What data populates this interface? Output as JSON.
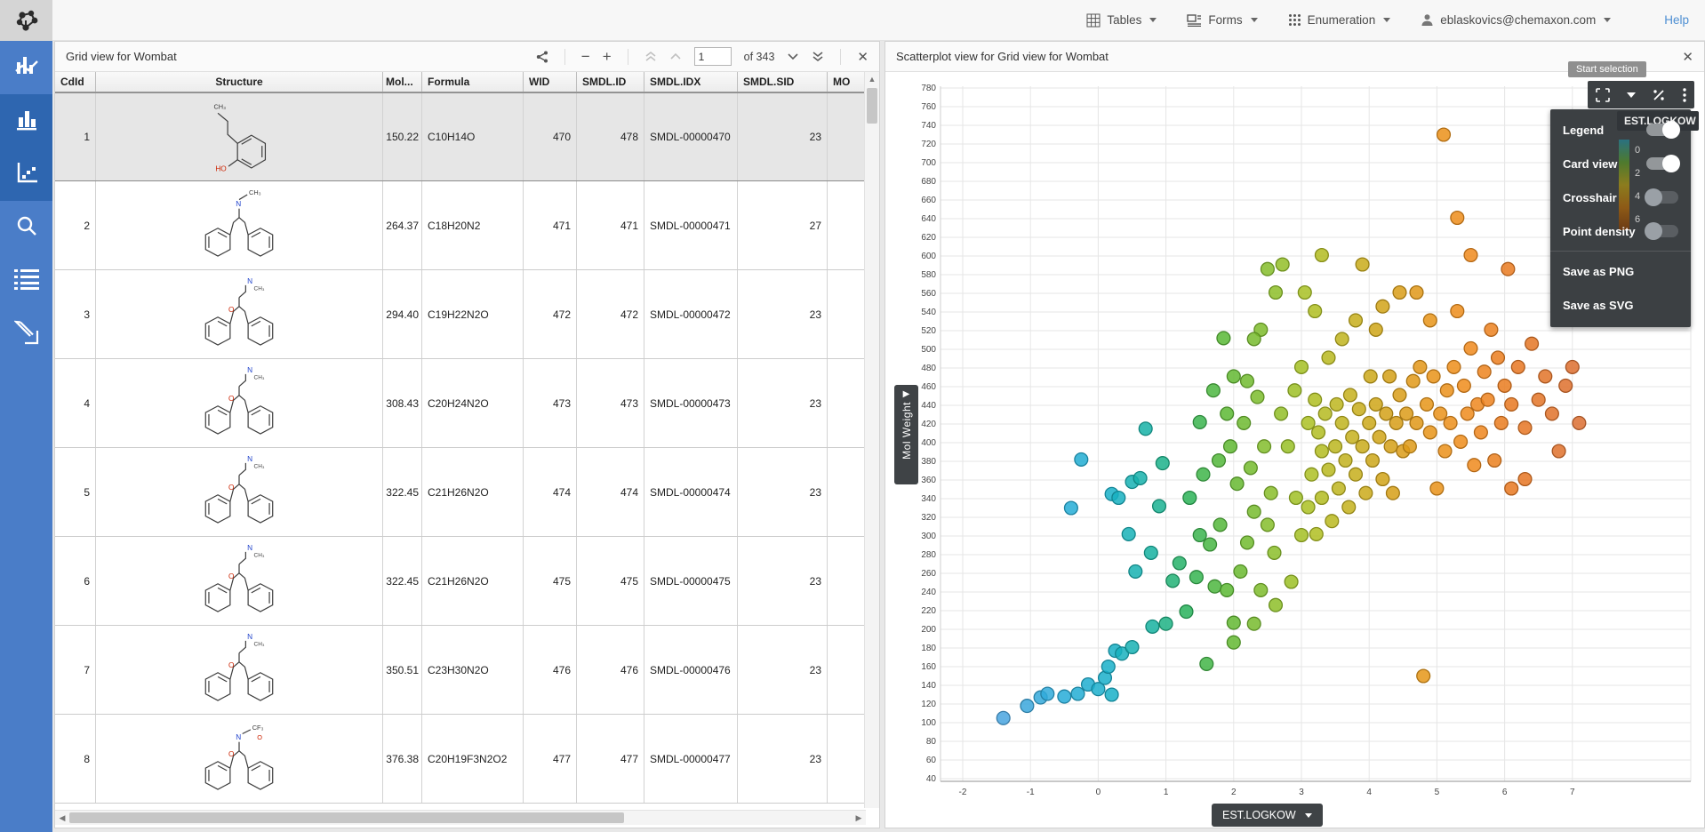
{
  "topbar": {
    "nav": [
      {
        "label": "Tables",
        "icon": "tables-grid-icon"
      },
      {
        "label": "Forms",
        "icon": "forms-icon"
      },
      {
        "label": "Enumeration",
        "icon": "enumeration-dots-icon"
      }
    ],
    "user_label": "eblaskovics@chemaxon.com",
    "user_icon": "user-icon",
    "help_label": "Help"
  },
  "sidebar": {
    "logo_icon": "molecule-logo-icon",
    "icons": [
      "combo-chart-icon",
      "bar-chart-icon",
      "scatter-chart-icon",
      "search-icon",
      "list-icon",
      "sketch-icon"
    ],
    "active": [
      false,
      true,
      true,
      false,
      false,
      false
    ]
  },
  "grid_panel": {
    "title": "Grid view for Wombat",
    "toolbar_icons": [
      "share-icon",
      "zoom-out-icon",
      "zoom-in-icon",
      "first-page-icon",
      "prev-page-icon",
      "next-page-icon",
      "last-page-icon",
      "close-icon"
    ],
    "zoom_out_label": "−",
    "zoom_in_label": "+",
    "pagination": {
      "page": "1",
      "total_label": "of 343"
    },
    "columns": [
      "CdId",
      "Structure",
      "Mol...",
      "Formula",
      "WID",
      "SMDL.ID",
      "SMDL.IDX",
      "SMDL.SID",
      "MO"
    ],
    "rows": [
      {
        "cdid": "1",
        "structure": "phenol",
        "mol": "150.22",
        "formula": "C10H14O",
        "wid": "470",
        "smdl_id": "478",
        "smdl_idx": "SMDL-00000470",
        "smdl_sid": "23",
        "mo": ""
      },
      {
        "cdid": "2",
        "structure": "tricyclic-n",
        "mol": "264.37",
        "formula": "C18H20N2",
        "wid": "471",
        "smdl_id": "471",
        "smdl_idx": "SMDL-00000471",
        "smdl_sid": "27",
        "mo": ""
      },
      {
        "cdid": "3",
        "structure": "tricyclic-o",
        "mol": "294.40",
        "formula": "C19H22N2O",
        "wid": "472",
        "smdl_id": "472",
        "smdl_idx": "SMDL-00000472",
        "smdl_sid": "23",
        "mo": ""
      },
      {
        "cdid": "4",
        "structure": "tricyclic-o",
        "mol": "308.43",
        "formula": "C20H24N2O",
        "wid": "473",
        "smdl_id": "473",
        "smdl_idx": "SMDL-00000473",
        "smdl_sid": "23",
        "mo": ""
      },
      {
        "cdid": "5",
        "structure": "tricyclic-o",
        "mol": "322.45",
        "formula": "C21H26N2O",
        "wid": "474",
        "smdl_id": "474",
        "smdl_idx": "SMDL-00000474",
        "smdl_sid": "23",
        "mo": ""
      },
      {
        "cdid": "6",
        "structure": "tricyclic-o",
        "mol": "322.45",
        "formula": "C21H26N2O",
        "wid": "475",
        "smdl_id": "475",
        "smdl_idx": "SMDL-00000475",
        "smdl_sid": "23",
        "mo": ""
      },
      {
        "cdid": "7",
        "structure": "tricyclic-o",
        "mol": "350.51",
        "formula": "C23H30N2O",
        "wid": "476",
        "smdl_id": "476",
        "smdl_idx": "SMDL-00000476",
        "smdl_sid": "23",
        "mo": ""
      },
      {
        "cdid": "8",
        "structure": "tricyclic-f",
        "mol": "376.38",
        "formula": "C20H19F3N2O2",
        "wid": "477",
        "smdl_id": "477",
        "smdl_idx": "SMDL-00000477",
        "smdl_sid": "23",
        "mo": ""
      }
    ],
    "selected_row_index": 0
  },
  "scatter_panel": {
    "title": "Scatterplot view for Grid view for Wombat",
    "tooltip": "Start selection",
    "toolbar_icons": [
      "selection-box-icon",
      "dropdown-caret-icon",
      "select-points-icon",
      "kebab-menu-icon"
    ],
    "menu": {
      "toggles": [
        {
          "label": "Legend",
          "on": true
        },
        {
          "label": "Card view",
          "on": true
        },
        {
          "label": "Crosshair",
          "on": false
        },
        {
          "label": "Point density",
          "on": false
        }
      ],
      "actions": [
        {
          "label": "Save as PNG"
        },
        {
          "label": "Save as SVG"
        }
      ]
    },
    "x_axis_button_label": "EST.LOGKOW",
    "y_axis_tab_label": "Mol Weight",
    "legend": {
      "title": "EST.LOGKOW",
      "tick_labels": [
        "0",
        "2",
        "4",
        "6"
      ]
    }
  },
  "chart_data": {
    "type": "scatter",
    "title": "Scatterplot view for Grid view for Wombat",
    "xlabel": "EST.LOGKOW",
    "ylabel": "Mol Weight",
    "xlim": [
      -2.4,
      7.8
    ],
    "ylim": [
      30,
      790
    ],
    "x_ticks": [
      -2,
      -1,
      0,
      1,
      2,
      3,
      4,
      5,
      6,
      7
    ],
    "y_tick_range": {
      "min": 40,
      "max": 780,
      "step": 20
    },
    "grid": true,
    "color_by": "EST.LOGKOW",
    "color_scale_stops": [
      {
        "x": -1.5,
        "color": "#4da3e0"
      },
      {
        "x": -0.5,
        "color": "#26acd8"
      },
      {
        "x": 0.2,
        "color": "#18b0c8"
      },
      {
        "x": 0.8,
        "color": "#16b2a0"
      },
      {
        "x": 1.3,
        "color": "#28b25a"
      },
      {
        "x": 1.9,
        "color": "#5cb832"
      },
      {
        "x": 2.5,
        "color": "#85bd2a"
      },
      {
        "x": 3.1,
        "color": "#abc122"
      },
      {
        "x": 3.7,
        "color": "#c4b11c"
      },
      {
        "x": 4.3,
        "color": "#d4a016"
      },
      {
        "x": 4.9,
        "color": "#e89418"
      },
      {
        "x": 5.5,
        "color": "#f08a1c"
      },
      {
        "x": 6.1,
        "color": "#e87820"
      },
      {
        "x": 7.3,
        "color": "#d96c34"
      }
    ],
    "points": [
      [
        -1.4,
        105
      ],
      [
        -1.05,
        118
      ],
      [
        -0.85,
        127
      ],
      [
        -0.75,
        131
      ],
      [
        -0.5,
        128
      ],
      [
        -0.3,
        131
      ],
      [
        -0.15,
        141
      ],
      [
        0,
        136
      ],
      [
        0.1,
        148
      ],
      [
        0.2,
        130
      ],
      [
        0.25,
        177
      ],
      [
        0.35,
        174
      ],
      [
        0.5,
        181
      ],
      [
        0.15,
        160
      ],
      [
        -0.4,
        330
      ],
      [
        -0.25,
        382
      ],
      [
        0.2,
        345
      ],
      [
        0.3,
        341
      ],
      [
        0.45,
        302
      ],
      [
        0.5,
        358
      ],
      [
        0.62,
        362
      ],
      [
        0.7,
        415
      ],
      [
        0.9,
        332
      ],
      [
        0.55,
        262
      ],
      [
        0.78,
        282
      ],
      [
        0.95,
        378
      ],
      [
        0.8,
        203
      ],
      [
        1,
        206
      ],
      [
        1.1,
        252
      ],
      [
        1.2,
        271
      ],
      [
        1.3,
        219
      ],
      [
        1.45,
        256
      ],
      [
        1.5,
        301
      ],
      [
        1.6,
        163
      ],
      [
        1.65,
        291
      ],
      [
        1.72,
        246
      ],
      [
        1.8,
        312
      ],
      [
        1.9,
        242
      ],
      [
        2,
        207
      ],
      [
        2.1,
        262
      ],
      [
        2.2,
        293
      ],
      [
        2.3,
        326
      ],
      [
        2.4,
        242
      ],
      [
        2.5,
        312
      ],
      [
        2.6,
        282
      ],
      [
        1.35,
        341
      ],
      [
        1.55,
        366
      ],
      [
        1.78,
        381
      ],
      [
        1.95,
        396
      ],
      [
        2.05,
        356
      ],
      [
        2.15,
        421
      ],
      [
        2.25,
        373
      ],
      [
        2.35,
        449
      ],
      [
        2.45,
        396
      ],
      [
        2.55,
        346
      ],
      [
        2,
        186
      ],
      [
        2.3,
        206
      ],
      [
        2.62,
        226
      ],
      [
        2.85,
        251
      ],
      [
        1.5,
        422
      ],
      [
        1.7,
        456
      ],
      [
        1.9,
        431
      ],
      [
        2,
        471
      ],
      [
        2.2,
        466
      ],
      [
        2.4,
        521
      ],
      [
        2.5,
        586
      ],
      [
        2.62,
        561
      ],
      [
        2.72,
        591
      ],
      [
        2.3,
        511
      ],
      [
        1.85,
        512
      ],
      [
        2.7,
        431
      ],
      [
        2.8,
        396
      ],
      [
        2.9,
        456
      ],
      [
        2.92,
        341
      ],
      [
        3,
        481
      ],
      [
        3.05,
        561
      ],
      [
        3.1,
        421
      ],
      [
        3.2,
        446
      ],
      [
        3.3,
        391
      ],
      [
        3,
        301
      ],
      [
        3.1,
        331
      ],
      [
        3.15,
        366
      ],
      [
        3.22,
        302
      ],
      [
        3.25,
        411
      ],
      [
        3.3,
        341
      ],
      [
        3.35,
        431
      ],
      [
        3.4,
        371
      ],
      [
        3.45,
        316
      ],
      [
        3.5,
        396
      ],
      [
        3.52,
        441
      ],
      [
        3.55,
        351
      ],
      [
        3.6,
        421
      ],
      [
        3.65,
        381
      ],
      [
        3.7,
        331
      ],
      [
        3.72,
        451
      ],
      [
        3.75,
        406
      ],
      [
        3.8,
        366
      ],
      [
        3.85,
        436
      ],
      [
        3.9,
        396
      ],
      [
        3.9,
        591
      ],
      [
        3.95,
        346
      ],
      [
        4,
        421
      ],
      [
        4.02,
        471
      ],
      [
        4.05,
        381
      ],
      [
        4.1,
        441
      ],
      [
        4.15,
        406
      ],
      [
        4.2,
        361
      ],
      [
        4.25,
        431
      ],
      [
        4.3,
        471
      ],
      [
        4.32,
        396
      ],
      [
        4.35,
        346
      ],
      [
        4.4,
        421
      ],
      [
        4.45,
        451
      ],
      [
        4.5,
        391
      ],
      [
        3.4,
        491
      ],
      [
        3.6,
        511
      ],
      [
        3.8,
        531
      ],
      [
        4.1,
        521
      ],
      [
        4.2,
        546
      ],
      [
        4.45,
        561
      ],
      [
        3.2,
        541
      ],
      [
        3.3,
        601
      ],
      [
        4.55,
        431
      ],
      [
        4.6,
        396
      ],
      [
        4.65,
        466
      ],
      [
        4.7,
        421
      ],
      [
        4.75,
        481
      ],
      [
        4.8,
        150
      ],
      [
        4.85,
        441
      ],
      [
        4.9,
        411
      ],
      [
        4.95,
        471
      ],
      [
        5,
        351
      ],
      [
        5.05,
        431
      ],
      [
        5.1,
        730
      ],
      [
        5.12,
        391
      ],
      [
        5.15,
        456
      ],
      [
        5.2,
        421
      ],
      [
        5.25,
        481
      ],
      [
        5.3,
        541
      ],
      [
        5.35,
        401
      ],
      [
        5.4,
        461
      ],
      [
        5.45,
        431
      ],
      [
        5.5,
        501
      ],
      [
        5.55,
        376
      ],
      [
        5.6,
        441
      ],
      [
        5.65,
        411
      ],
      [
        5.7,
        476
      ],
      [
        5.75,
        446
      ],
      [
        5.8,
        521
      ],
      [
        5.85,
        381
      ],
      [
        5.9,
        491
      ],
      [
        5.95,
        421
      ],
      [
        6,
        461
      ],
      [
        6.05,
        586
      ],
      [
        6.1,
        441
      ],
      [
        6.2,
        481
      ],
      [
        6.3,
        416
      ],
      [
        6.4,
        506
      ],
      [
        6.5,
        446
      ],
      [
        6.6,
        471
      ],
      [
        6.7,
        431
      ],
      [
        6.8,
        391
      ],
      [
        6.9,
        461
      ],
      [
        7,
        481
      ],
      [
        7.1,
        421
      ],
      [
        5.3,
        641
      ],
      [
        5.5,
        601
      ],
      [
        6.1,
        351
      ],
      [
        6.3,
        361
      ],
      [
        4.7,
        561
      ],
      [
        4.9,
        531
      ]
    ]
  }
}
